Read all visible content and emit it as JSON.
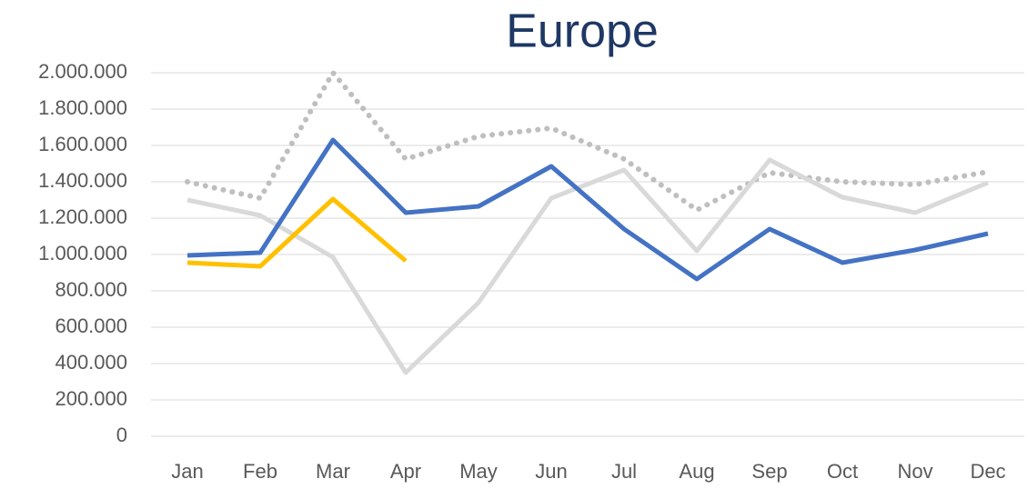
{
  "chart_data": {
    "type": "line",
    "title": "Europe",
    "categories": [
      "Jan",
      "Feb",
      "Mar",
      "Apr",
      "May",
      "Jun",
      "Jul",
      "Aug",
      "Sep",
      "Oct",
      "Nov",
      "Dec"
    ],
    "series": [
      {
        "color": "#bfbfbf",
        "style": "dotted",
        "values": [
          1400000,
          1310000,
          2000000,
          1525000,
          1650000,
          1695000,
          1525000,
          1245000,
          1450000,
          1400000,
          1385000,
          1455000
        ]
      },
      {
        "color": "#d9d9d9",
        "style": "solid",
        "values": [
          1300000,
          1215000,
          985000,
          350000,
          735000,
          1310000,
          1465000,
          1020000,
          1520000,
          1315000,
          1230000,
          1395000
        ]
      },
      {
        "color": "#4472c4",
        "style": "solid",
        "values": [
          995000,
          1010000,
          1630000,
          1230000,
          1265000,
          1485000,
          1140000,
          865000,
          1140000,
          955000,
          1025000,
          1115000
        ]
      },
      {
        "color": "#ffc000",
        "style": "solid",
        "values": [
          955000,
          935000,
          1305000,
          965000,
          null,
          null,
          null,
          null,
          null,
          null,
          null,
          null
        ]
      }
    ],
    "ylim": [
      0,
      2000000
    ],
    "yticks": [
      0,
      {
        "value": 200000,
        "label": "200.000"
      },
      {
        "value": 400000,
        "label": "400.000"
      },
      {
        "value": 600000,
        "label": "600.000"
      },
      {
        "value": 800000,
        "label": "800.000"
      },
      {
        "value": 1000000,
        "label": "1.000.000"
      },
      {
        "value": 1200000,
        "label": "1.200.000"
      },
      {
        "value": 1400000,
        "label": "1.400.000"
      },
      {
        "value": 1600000,
        "label": "1.600.000"
      },
      {
        "value": 1800000,
        "label": "1.800.000"
      },
      {
        "value": 2000000,
        "label": "2.000.000"
      }
    ],
    "grid": true
  }
}
